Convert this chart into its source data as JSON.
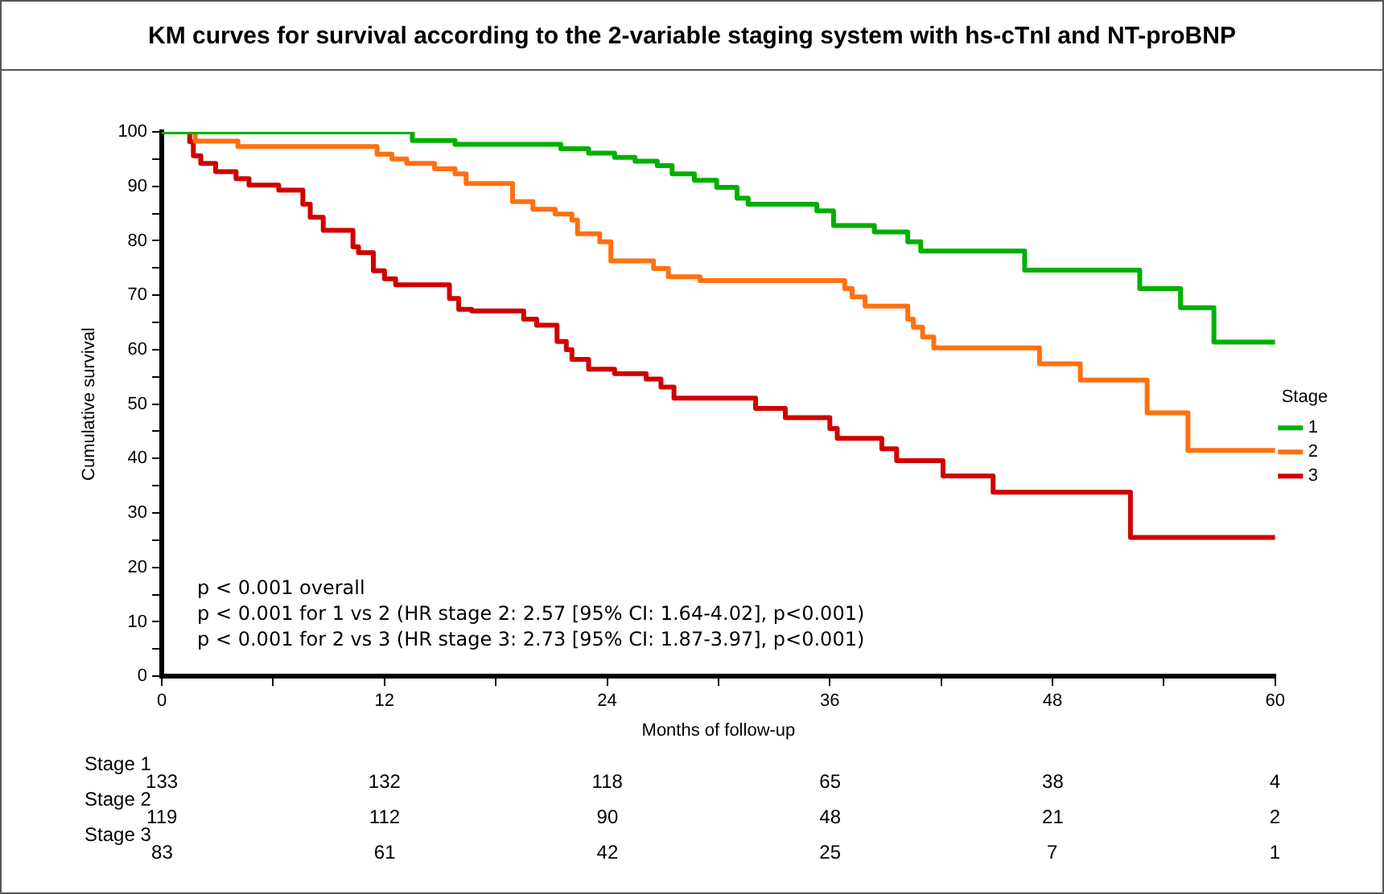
{
  "chart_data": [
    {
      "type": "step",
      "title": "KM curves for survival according to the 2-variable staging system with hs-cTnI and NT-proBNP",
      "xlabel": "Months of follow-up",
      "ylabel": "Cumulative survival",
      "legend_title": "Stage",
      "legend": "right",
      "grid": false,
      "marker": "none",
      "line_style": "solid",
      "xlim": [
        0,
        60
      ],
      "xticks": [
        0,
        {
          "value": 6,
          "label": null
        },
        12,
        {
          "value": 18,
          "label": null
        },
        24,
        {
          "value": 30,
          "label": null
        },
        36,
        {
          "value": 42,
          "label": null
        },
        48,
        {
          "value": 54,
          "label": null
        },
        60
      ],
      "ylim": [
        0,
        100
      ],
      "yticks": [
        0,
        {
          "value": 5,
          "label": null
        },
        10,
        {
          "value": 15,
          "label": null
        },
        20,
        {
          "value": 25,
          "label": null
        },
        30,
        {
          "value": 35,
          "label": null
        },
        40,
        {
          "value": 45,
          "label": null
        },
        50,
        {
          "value": 55,
          "label": null
        },
        60,
        {
          "value": 65,
          "label": null
        },
        70,
        {
          "value": 75,
          "label": null
        },
        80,
        {
          "value": 85,
          "label": null
        },
        90,
        {
          "value": 95,
          "label": null
        },
        100
      ],
      "series": [
        {
          "name": "1",
          "color": "#00b000",
          "x": [
            0,
            13.5,
            15.8,
            21.5,
            23,
            24.4,
            25.5,
            26.7,
            27.5,
            28.7,
            29.9,
            31,
            31.6,
            35.3,
            36.2,
            38.4,
            40.2,
            40.9,
            46.5,
            52.7,
            54.9,
            56.7,
            60
          ],
          "values": [
            100,
            98.4,
            97.7,
            96.9,
            96.1,
            95.3,
            94.6,
            93.8,
            92.3,
            91.1,
            89.8,
            87.8,
            86.7,
            85.5,
            82.8,
            81.6,
            79.8,
            78.1,
            74.6,
            71.2,
            67.7,
            61.4,
            61.4
          ]
        },
        {
          "name": "2",
          "color": "#ff7010",
          "x": [
            0,
            1.8,
            4.1,
            11.6,
            12.4,
            13.2,
            14.7,
            15.8,
            16.4,
            18.9,
            20,
            21.2,
            22.1,
            22.4,
            23.6,
            24.2,
            26.5,
            27.3,
            29,
            36.8,
            37.2,
            37.9,
            40.2,
            40.5,
            41,
            41.6,
            47.3,
            49.5,
            53.1,
            55.3,
            60
          ],
          "values": [
            100,
            98.3,
            97.3,
            95.9,
            95,
            94.2,
            93.2,
            92.3,
            90.5,
            87.2,
            85.8,
            84.9,
            83.8,
            81.3,
            79.8,
            76.3,
            74.9,
            73.4,
            72.7,
            71.2,
            69.7,
            68,
            65.6,
            64.1,
            62.3,
            60.3,
            57.4,
            54.4,
            48.4,
            41.5,
            41.5
          ]
        },
        {
          "name": "3",
          "color": "#d00000",
          "x": [
            0,
            1.5,
            1.7,
            2.1,
            2.9,
            4,
            4.7,
            6.3,
            7.6,
            8,
            8.7,
            10.3,
            10.6,
            11.4,
            12,
            12.6,
            15.5,
            16,
            16.7,
            19.5,
            20.2,
            21.3,
            21.8,
            22.1,
            23,
            24.4,
            26.1,
            26.9,
            27.6,
            32,
            33.6,
            36,
            36.4,
            38.8,
            39.6,
            42.1,
            44.8,
            52.2,
            60
          ],
          "values": [
            100,
            98.2,
            95.6,
            94.2,
            92.7,
            91.4,
            90.2,
            89.3,
            86.7,
            84.3,
            81.9,
            78.9,
            77.8,
            74.5,
            73,
            71.9,
            69.4,
            67.4,
            67.1,
            65.6,
            64.5,
            61.5,
            60,
            58.2,
            56.4,
            55.6,
            54.6,
            53.1,
            51.1,
            49.2,
            47.5,
            45.5,
            43.7,
            41.8,
            39.6,
            36.8,
            33.8,
            25.5,
            25.5
          ]
        }
      ],
      "annotations": [
        "p < 0.001 overall",
        "p < 0.001 for 1 vs 2 (HR stage 2: 2.57 [95% CI: 1.64-4.02], p<0.001)",
        "p < 0.001 for 2 vs 3 (HR stage 3: 2.73 [95% CI: 1.87-3.97], p<0.001)"
      ]
    },
    {
      "type": "other",
      "annotations": [
        "Stage 1",
        "133",
        "132",
        "118",
        "65",
        "38",
        "4",
        "Stage 2",
        "119",
        "112",
        "90",
        "48",
        "21",
        "2",
        "Stage 3",
        "83",
        "61",
        "42",
        "25",
        "7",
        "1"
      ]
    }
  ]
}
